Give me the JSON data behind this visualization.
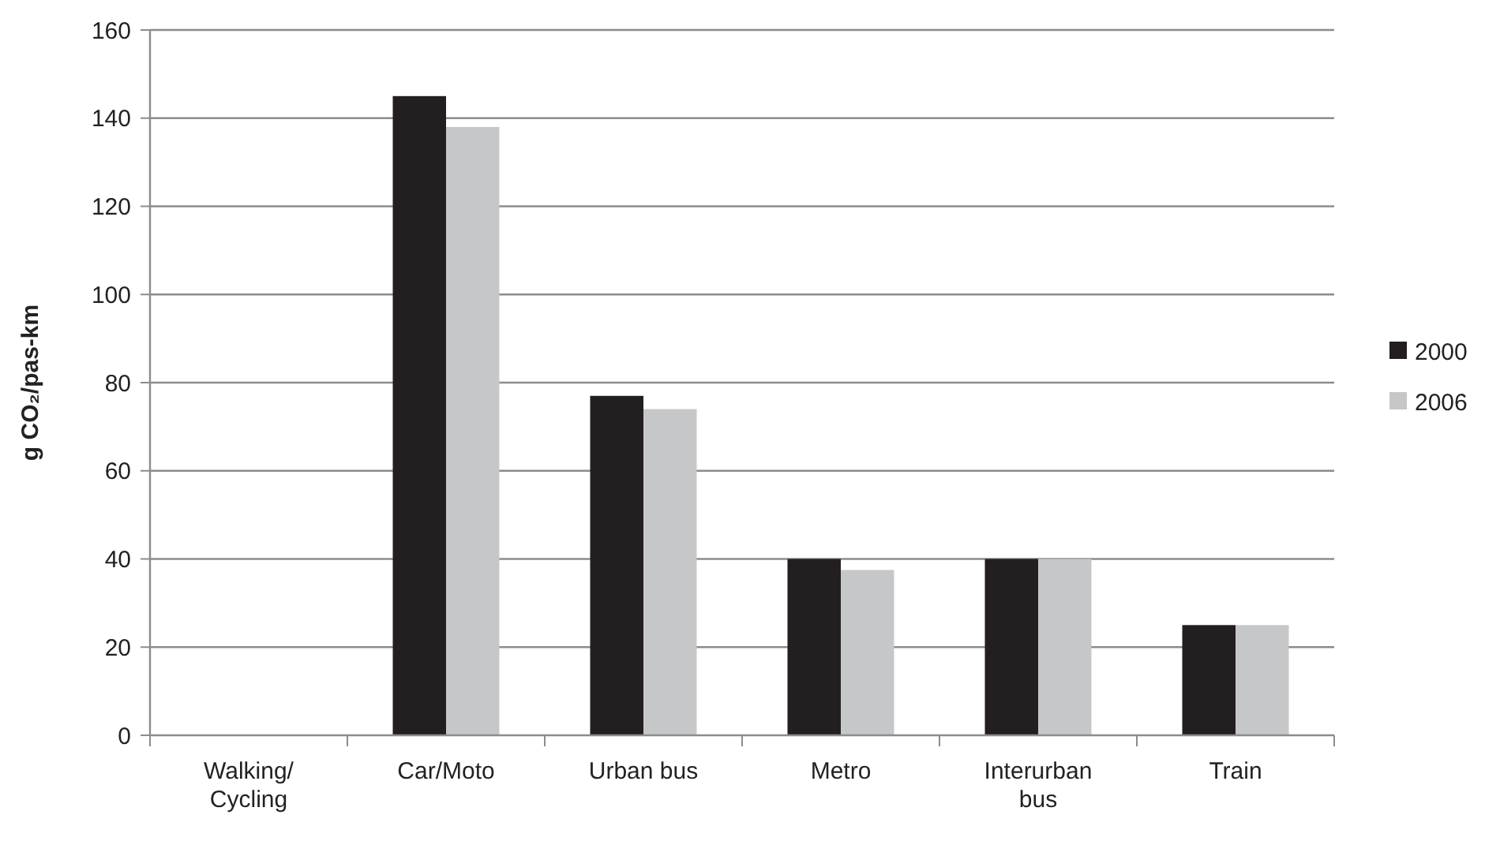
{
  "chart_data": {
    "type": "bar",
    "ylabel": "g CO₂/pas-km",
    "categories": [
      "Walking/ Cycling",
      "Car/Moto",
      "Urban bus",
      "Metro",
      "Interurban bus",
      "Train"
    ],
    "series": [
      {
        "name": "2000",
        "color": "#231f20",
        "values": [
          0,
          145,
          77,
          40,
          40,
          25
        ]
      },
      {
        "name": "2006",
        "color": "#c6c7c9",
        "values": [
          0,
          138,
          74,
          37.5,
          40,
          25
        ]
      }
    ],
    "ylim": [
      0,
      160
    ],
    "yticks": [
      0,
      20,
      40,
      60,
      80,
      100,
      120,
      140,
      160
    ],
    "grid": "y",
    "legend": "right"
  }
}
